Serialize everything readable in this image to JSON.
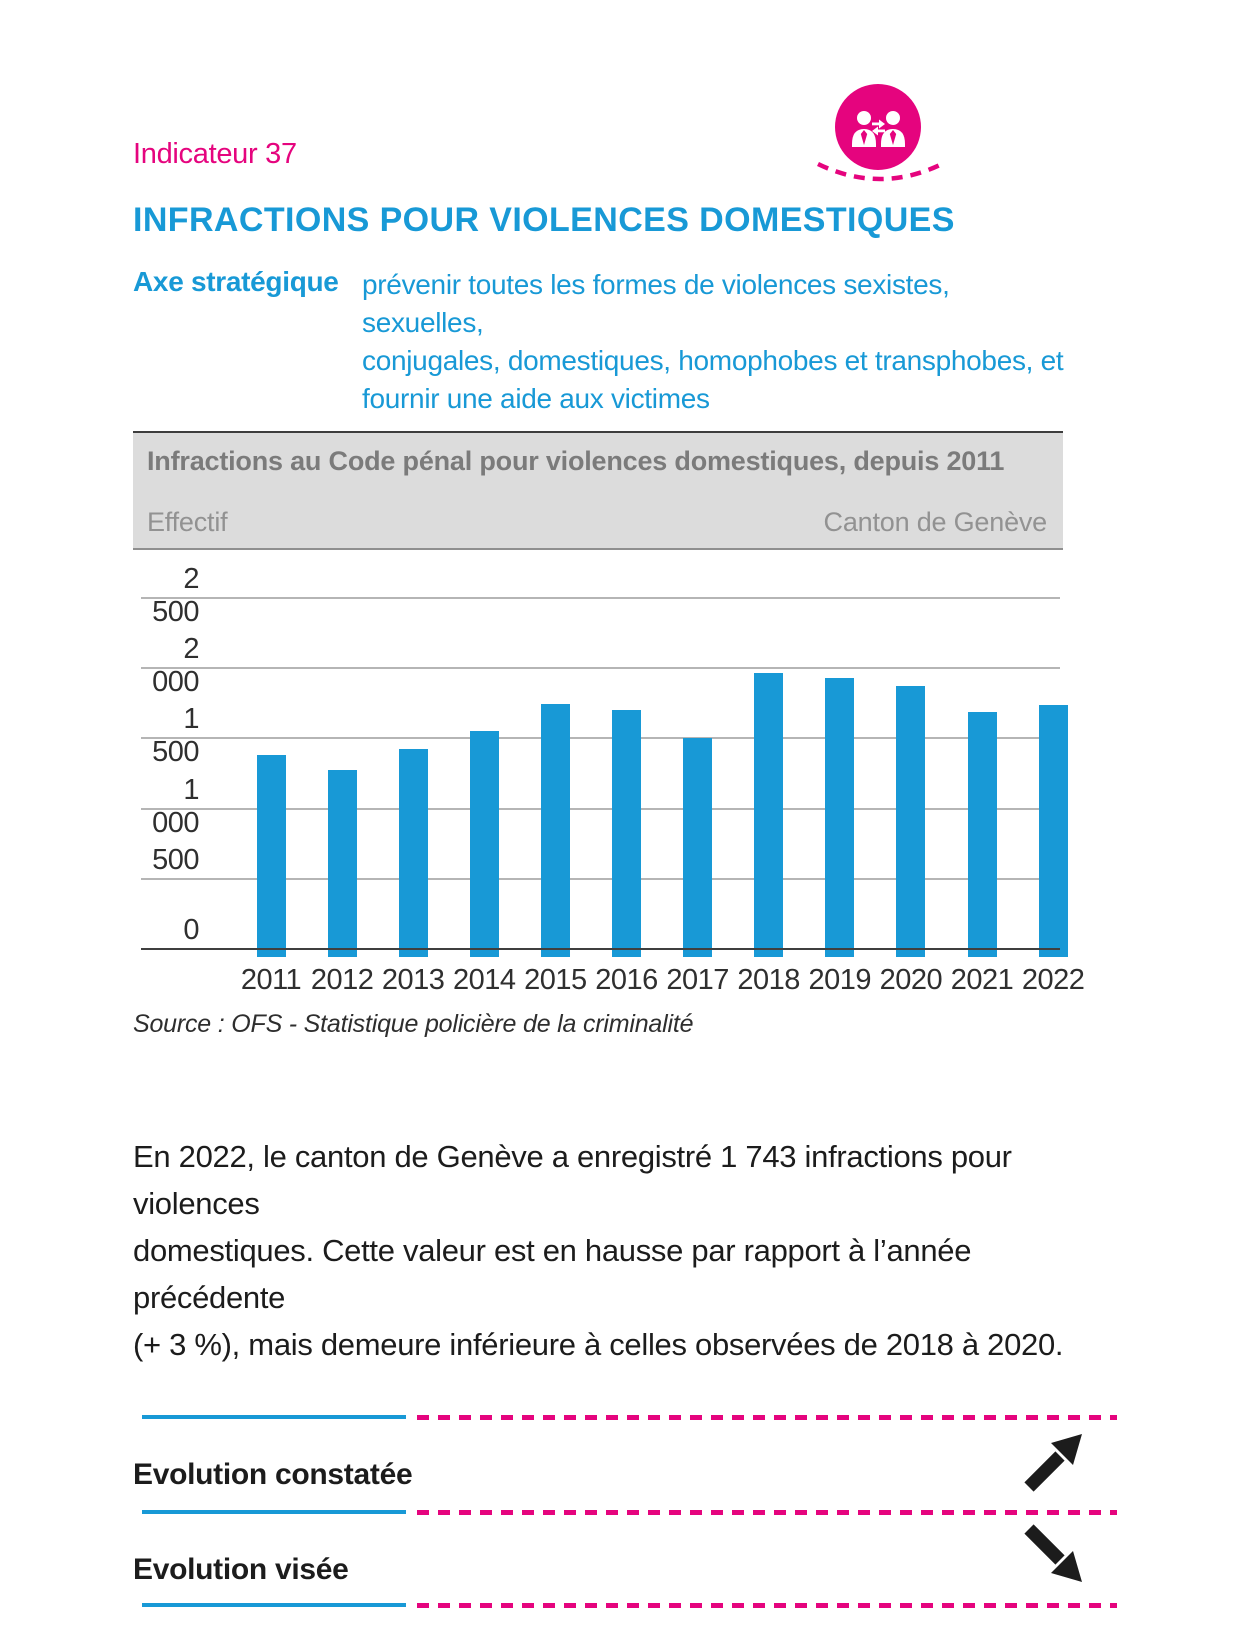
{
  "page": {
    "indicator_label": "Indicateur 37",
    "title": "INFRACTIONS POUR VIOLENCES DOMESTIQUES",
    "axe": {
      "label": "Axe stratégique",
      "line1": "prévenir toutes les formes de violences sexistes, sexuelles,",
      "line2": "conjugales, domestiques, homophobes et transphobes, et",
      "line3": "fournir une aide aux victimes"
    }
  },
  "chart": {
    "header": "Infractions au Code pénal pour violences domestiques, depuis 2011",
    "unit_label": "Effectif",
    "region_label": "Canton de Genève",
    "source": "Source : OFS - Statistique policière de la criminalité"
  },
  "chart_data": {
    "type": "bar",
    "title": "Infractions au Code pénal pour violences domestiques, depuis 2011",
    "ylabel": "Effectif",
    "region": "Canton de Genève",
    "categories": [
      "2011",
      "2012",
      "2013",
      "2014",
      "2015",
      "2016",
      "2017",
      "2018",
      "2019",
      "2020",
      "2021",
      "2022"
    ],
    "values": [
      1390,
      1280,
      1435,
      1560,
      1755,
      1710,
      1510,
      1970,
      1940,
      1880,
      1692,
      1743
    ],
    "ylim": [
      0,
      2500
    ],
    "yticks": [
      0,
      500,
      1000,
      1500,
      2000,
      2500
    ],
    "ytick_labels": [
      "0",
      "500",
      "1 000",
      "1 500",
      "2 000",
      "2 500"
    ],
    "grid": true,
    "legend": "none",
    "bar_color": "#1899d6"
  },
  "body": {
    "paragraph_line1": "En 2022, le canton de Genève a enregistré 1 743 infractions pour violences",
    "paragraph_line2": "domestiques. Cette valeur est en hausse par rapport à l’année précédente",
    "paragraph_line3": "(+ 3 %), mais demeure inférieure à celles observées de 2018 à 2020."
  },
  "evolution": {
    "observed_label": "Evolution constatée",
    "observed_trend": "up-right",
    "target_label": "Evolution visée",
    "target_trend": "down-right"
  },
  "icons": {
    "people_exchange": "people-exchange-icon",
    "trend_up": "trend-up-arrow",
    "trend_down": "trend-down-arrow"
  },
  "colors": {
    "magenta": "#e5047e",
    "blue": "#1899d6",
    "header_bg": "#dcdcdc",
    "header_text": "#7b7b7b",
    "grid": "#b5b5b5",
    "axis": "#3f3f3f",
    "text": "#1c1c1c"
  }
}
